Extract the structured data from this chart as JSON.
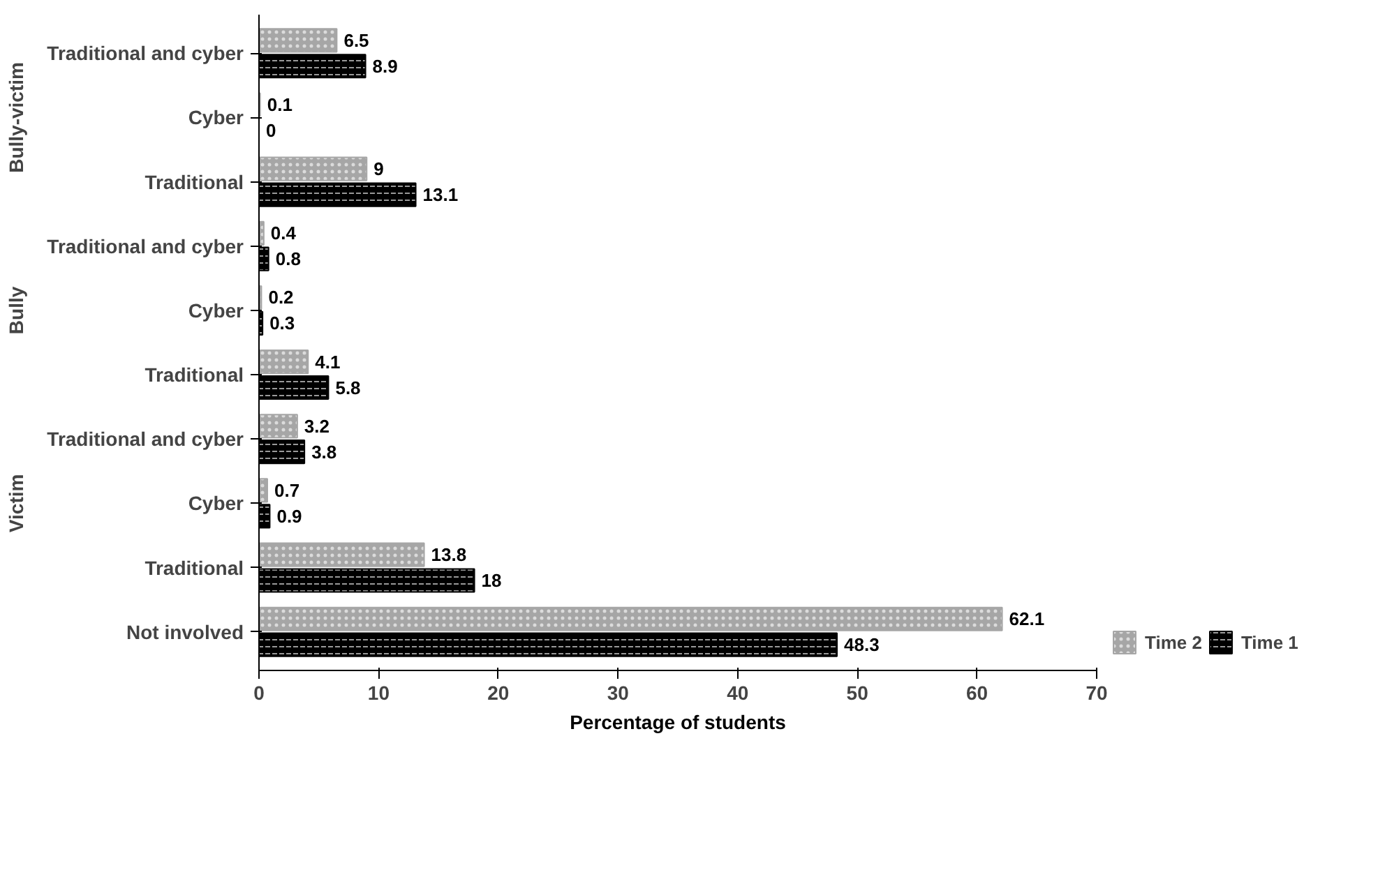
{
  "chart_data": {
    "type": "bar",
    "orientation": "horizontal",
    "categories": [
      "Traditional and cyber",
      "Cyber",
      "Traditional",
      "Traditional and cyber",
      "Cyber",
      "Traditional",
      "Traditional and cyber",
      "Cyber",
      "Traditional",
      "Not involved"
    ],
    "series": [
      {
        "name": "Time 2",
        "color": "#a6a6a6",
        "values": [
          6.5,
          0.1,
          9,
          0.4,
          0.2,
          4.1,
          3.2,
          0.7,
          13.8,
          62.1
        ]
      },
      {
        "name": "Time 1",
        "color": "#000000",
        "values": [
          8.9,
          0,
          13.1,
          0.8,
          0.3,
          5.8,
          3.8,
          0.9,
          18,
          48.3
        ]
      }
    ],
    "annotations": [
      "Bully-victim",
      "Bully",
      "Victim"
    ],
    "xlabel": "Percentage of students",
    "xlim": [
      0,
      70
    ],
    "xticks": [
      0,
      10,
      20,
      30,
      40,
      50,
      60,
      70
    ],
    "data_labels": true,
    "grid": false,
    "legend": "bottom right"
  }
}
